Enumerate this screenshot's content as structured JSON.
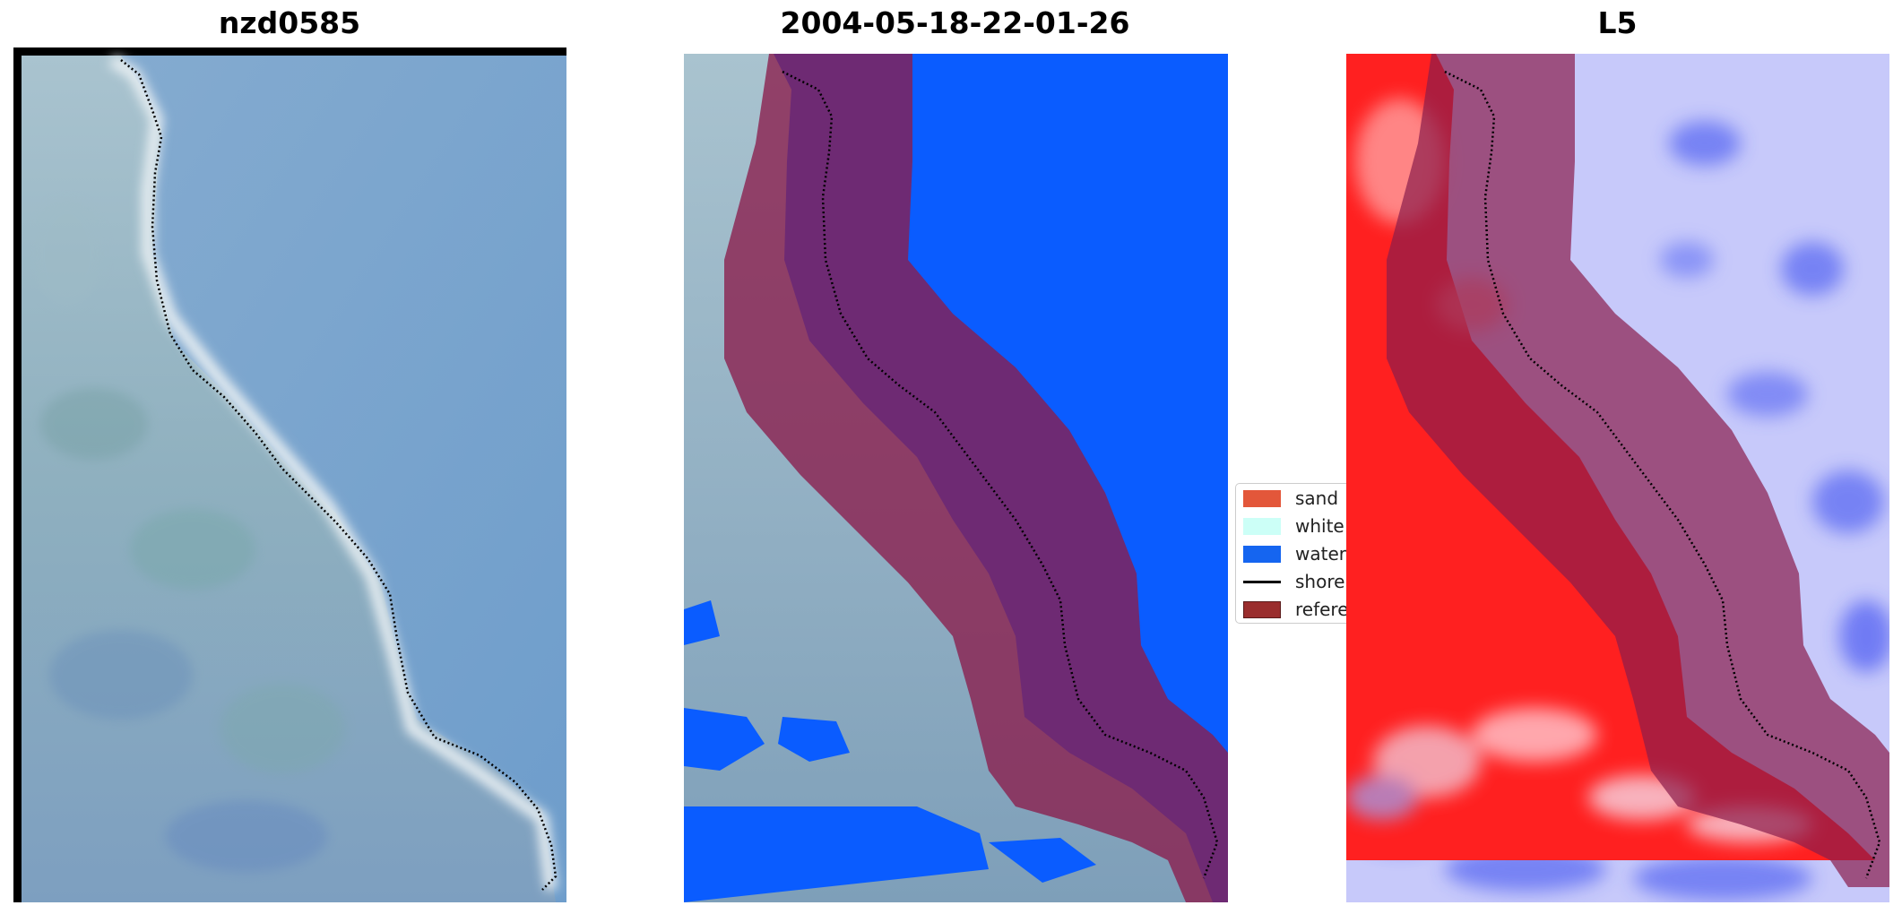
{
  "panels": [
    {
      "title": "nzd0585"
    },
    {
      "title": "2004-05-18-22-01-26"
    },
    {
      "title": "L5"
    }
  ],
  "legend": {
    "items": [
      {
        "label": "sand",
        "color": "#e3573a",
        "kind": "patch"
      },
      {
        "label": "white",
        "color": "#ccfff7",
        "kind": "patch"
      },
      {
        "label": "water",
        "color": "#1565f0",
        "kind": "patch"
      },
      {
        "label": "shore",
        "color": "#000000",
        "kind": "line"
      },
      {
        "label": "refere",
        "color": "#9a2d2d",
        "kind": "patch"
      }
    ]
  },
  "colors": {
    "water_class": "#0a5cff",
    "reference_band": "#8a1c4c",
    "imagery_land": "#8fb0bf",
    "imagery_water": "#6f9fcf",
    "index_positive": "#ff1a1a",
    "index_negative": "#2a3cf0"
  }
}
